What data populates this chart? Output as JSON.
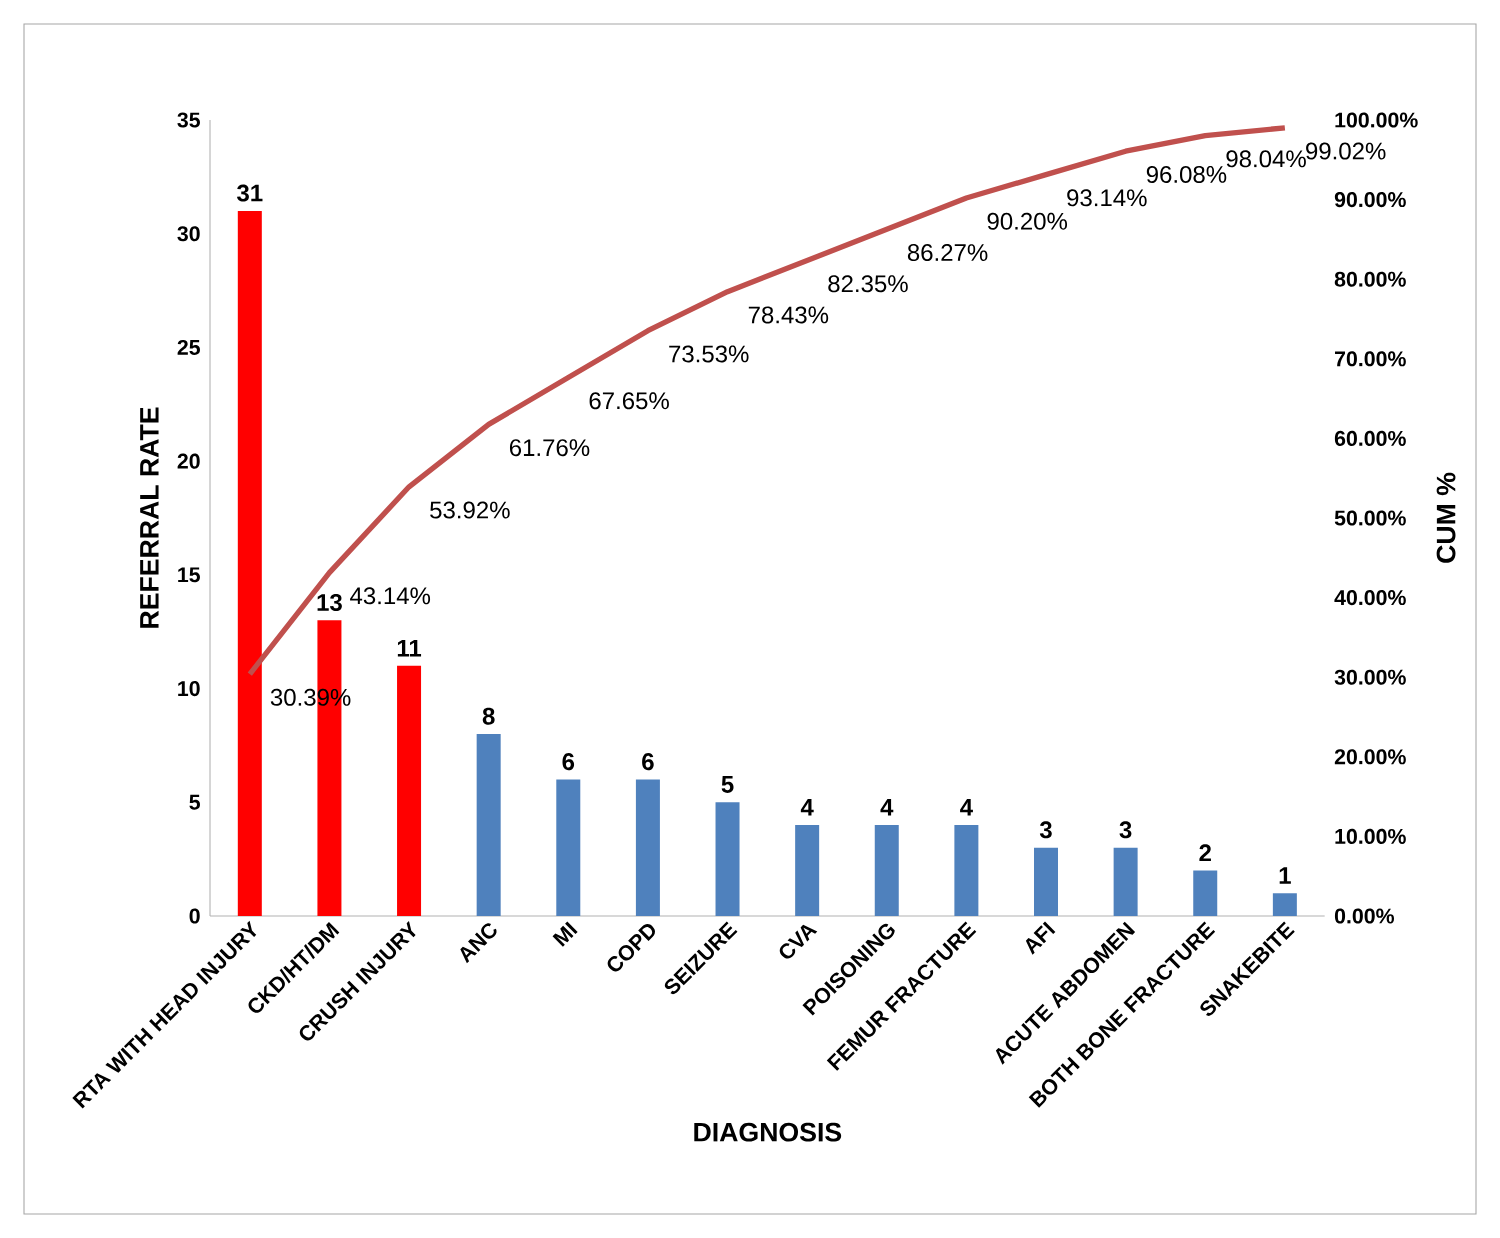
{
  "chart_data": {
    "type": "bar",
    "xlabel": "DIAGNOSIS",
    "ylabel": "REFERRAL RATE",
    "y2label": "CUM %",
    "categories": [
      "RTA WITH HEAD INJURY",
      "CKD/HT/DM",
      "CRUSH INJURY",
      "ANC",
      "MI",
      "COPD",
      "SEIZURE",
      "CVA",
      "POISONING",
      "FEMUR FRACTURE",
      "AFI",
      "ACUTE ABDOMEN",
      "BOTH BONE FRACTURE",
      "SNAKEBITE"
    ],
    "ylim": [
      0,
      35
    ],
    "yticks": [
      0,
      5,
      10,
      15,
      20,
      25,
      30,
      35
    ],
    "y2lim": [
      0,
      100
    ],
    "y2ticks": [
      {
        "value": 0,
        "label": "0.00%"
      },
      {
        "value": 10,
        "label": "10.00%"
      },
      {
        "value": 20,
        "label": "20.00%"
      },
      {
        "value": 30,
        "label": "30.00%"
      },
      {
        "value": 40,
        "label": "40.00%"
      },
      {
        "value": 50,
        "label": "50.00%"
      },
      {
        "value": 60,
        "label": "60.00%"
      },
      {
        "value": 70,
        "label": "70.00%"
      },
      {
        "value": 80,
        "label": "80.00%"
      },
      {
        "value": 90,
        "label": "90.00%"
      },
      {
        "value": 100,
        "label": "100.00%"
      }
    ],
    "series": [
      {
        "values": [
          31,
          13,
          11,
          8,
          6,
          6,
          5,
          4,
          4,
          4,
          3,
          3,
          2,
          1
        ],
        "colors": [
          "#ff0000",
          "#ff0000",
          "#ff0000",
          "#4f81bd",
          "#4f81bd",
          "#4f81bd",
          "#4f81bd",
          "#4f81bd",
          "#4f81bd",
          "#4f81bd",
          "#4f81bd",
          "#4f81bd",
          "#4f81bd",
          "#4f81bd"
        ],
        "value_labels": [
          "31",
          "13",
          "11",
          "8",
          "6",
          "6",
          "5",
          "4",
          "4",
          "4",
          "3",
          "3",
          "2",
          "1"
        ]
      },
      {
        "type": "line",
        "axis": "y2",
        "color": "#c0504d",
        "marker": "none",
        "values": [
          30.39,
          43.14,
          53.92,
          61.76,
          67.65,
          73.53,
          78.43,
          82.35,
          86.27,
          90.2,
          93.14,
          96.08,
          98.04,
          99.02
        ],
        "value_labels": [
          "30.39%",
          "43.14%",
          "53.92%",
          "61.76%",
          "67.65%",
          "73.53%",
          "78.43%",
          "82.35%",
          "86.27%",
          "90.20%",
          "93.14%",
          "96.08%",
          "98.04%",
          "99.02%"
        ]
      }
    ]
  }
}
